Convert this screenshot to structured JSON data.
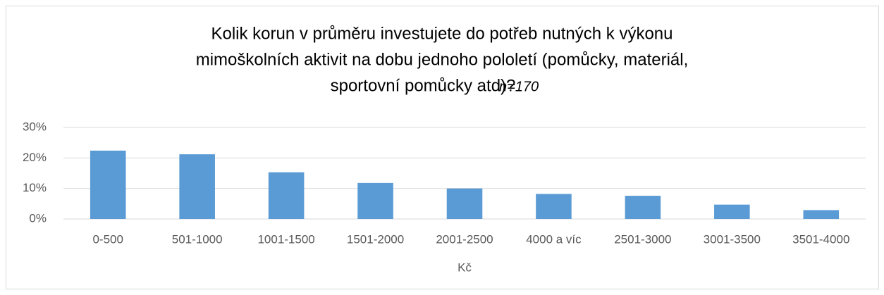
{
  "chart_data": {
    "type": "bar",
    "title": [
      "Kolik korun v průměru investujete do potřeb nutných k výkonu",
      "mimoškolních aktivit na dobu jednoho pololetí (pomůcky, materiál,",
      "sportovní pomůcky atd)?"
    ],
    "note": "n=170",
    "categories": [
      "0-500",
      "501-1000",
      "1001-1500",
      "1501-2000",
      "2001-2500",
      "4000 a víc",
      "2501-3000",
      "3001-3500",
      "3501-4000"
    ],
    "values": [
      22.4,
      21.2,
      15.3,
      11.8,
      10.0,
      8.2,
      7.6,
      4.7,
      2.9
    ],
    "color": "#5b9bd5",
    "x_label": "Kč",
    "ylim": [
      0,
      30
    ],
    "yticks": [
      {
        "value": 0,
        "label": "0%"
      },
      {
        "value": 10,
        "label": "10%"
      },
      {
        "value": 20,
        "label": "20%"
      },
      {
        "value": 30,
        "label": "30%"
      }
    ],
    "grid": true
  }
}
